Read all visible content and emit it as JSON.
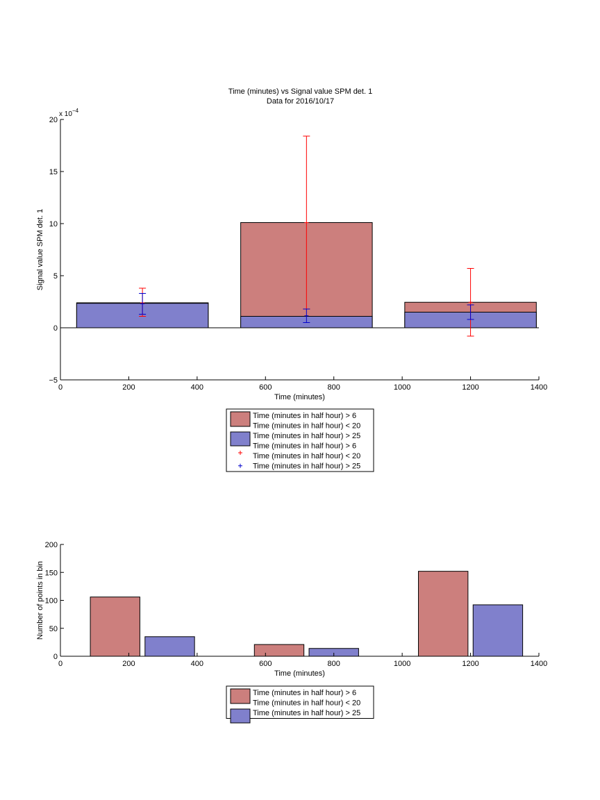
{
  "colors": {
    "series1": "#cc7f7d",
    "series2": "#8080cc",
    "err1": "#ff0000",
    "err2": "#0000cc",
    "axis": "#000000"
  },
  "chart_data": [
    {
      "type": "bar",
      "title": "Time (minutes) vs Signal value SPM det. 1",
      "subtitle": "Data for 2016/10/17",
      "xlabel": "Time (minutes)",
      "ylabel": "Signal value SPM det. 1",
      "exponent_label": "x 10",
      "exponent_power": "−4",
      "xlim": [
        0,
        1400
      ],
      "ylim": [
        -5,
        20
      ],
      "x_ticks": [
        0,
        200,
        400,
        600,
        800,
        1000,
        1200,
        1400
      ],
      "y_ticks": [
        -5,
        0,
        5,
        10,
        15,
        20
      ],
      "x_tick_labels": [
        "0",
        "200",
        "400",
        "600",
        "800",
        "1000",
        "1200",
        "1400"
      ],
      "y_tick_labels": [
        "−5",
        "0",
        "5",
        "10",
        "15",
        "20"
      ],
      "bin_width": 385,
      "bin_centers": [
        240,
        720,
        1200
      ],
      "series": [
        {
          "name": "Time (minutes in half hour) > 6 Time (minutes in half hour) < 20",
          "values": [
            2.4,
            10.1,
            2.45
          ],
          "err_center": [
            2.4,
            10.1,
            2.45
          ],
          "err_low": [
            1.1,
            1.8,
            -0.8
          ],
          "err_high": [
            3.8,
            18.4,
            5.7
          ]
        },
        {
          "name": "Time (minutes in half hour) > 25",
          "values": [
            2.35,
            1.1,
            1.5
          ],
          "err_center": [
            2.3,
            1.15,
            0.8
          ],
          "err_low": [
            1.3,
            0.5,
            0.8
          ],
          "err_high": [
            3.3,
            1.8,
            2.2
          ]
        }
      ],
      "legend": {
        "position": "below",
        "entries": [
          {
            "kind": "patch",
            "series": 0,
            "line1": "Time (minutes in half hour) > 6",
            "line2": "Time (minutes in half hour) < 20"
          },
          {
            "kind": "patch",
            "series": 1,
            "line1": "Time (minutes in half hour) > 25"
          },
          {
            "kind": "marker",
            "series": 0,
            "line1": "Time (minutes in half hour) > 6",
            "line2": "Time (minutes in half hour) < 20"
          },
          {
            "kind": "marker",
            "series": 1,
            "line1": "Time (minutes in half hour) > 25"
          }
        ]
      }
    },
    {
      "type": "bar",
      "xlabel": "Time (minutes)",
      "ylabel": "Number of points in bin",
      "xlim": [
        0,
        1400
      ],
      "ylim": [
        0,
        200
      ],
      "x_ticks": [
        0,
        200,
        400,
        600,
        800,
        1000,
        1200,
        1400
      ],
      "y_ticks": [
        0,
        50,
        100,
        150,
        200
      ],
      "x_tick_labels": [
        "0",
        "200",
        "400",
        "600",
        "800",
        "1000",
        "1200",
        "1400"
      ],
      "y_tick_labels": [
        "0",
        "50",
        "100",
        "150",
        "200"
      ],
      "bar_width": 145,
      "series": [
        {
          "name": "Time (minutes in half hour) > 6 Time (minutes in half hour) < 20",
          "x": [
            160,
            640,
            1120
          ],
          "values": [
            106,
            21,
            152
          ]
        },
        {
          "name": "Time (minutes in half hour) > 25",
          "x": [
            320,
            800,
            1280
          ],
          "values": [
            35,
            14,
            92
          ]
        }
      ],
      "legend": {
        "position": "below",
        "entries": [
          {
            "kind": "patch",
            "series": 0,
            "line1": "Time (minutes in half hour) > 6",
            "line2": "Time (minutes in half hour) < 20"
          },
          {
            "kind": "patch",
            "series": 1,
            "line1": "Time (minutes in half hour) > 25"
          }
        ]
      }
    }
  ]
}
